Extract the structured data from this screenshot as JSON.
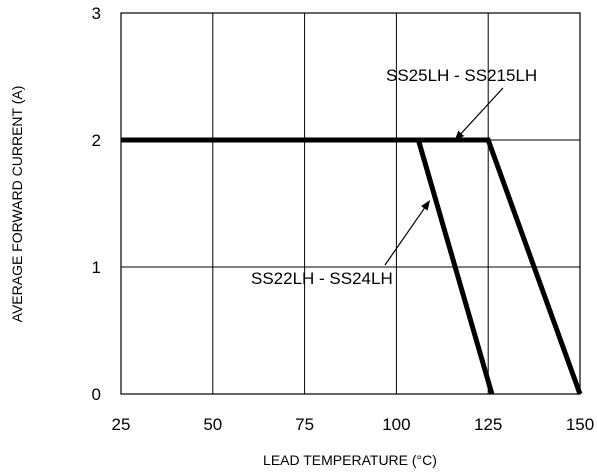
{
  "chart_data": {
    "type": "line",
    "title": "",
    "xlabel": "LEAD TEMPERATURE (°C)",
    "ylabel": "AVERAGE FORWARD CURRENT (A)",
    "xlim": [
      25,
      150
    ],
    "ylim": [
      0,
      3
    ],
    "xticks": [
      "25",
      "50",
      "75",
      "100",
      "125",
      "150"
    ],
    "yticks": [
      "0",
      "1",
      "2",
      "3"
    ],
    "grid": true,
    "legend": "none",
    "series": [
      {
        "name": "SS25LH - SS215LH",
        "x": [
          25,
          125,
          150
        ],
        "y": [
          2,
          2,
          0
        ]
      },
      {
        "name": "SS22LH - SS24LH",
        "x": [
          25,
          106,
          126
        ],
        "y": [
          2,
          2,
          0
        ]
      }
    ],
    "annotations": [
      {
        "text": "SS25LH - SS215LH",
        "arrow_to": [
          116,
          2
        ]
      },
      {
        "text": "SS22LH - SS24LH",
        "arrow_to": [
          109,
          1.52
        ]
      }
    ]
  }
}
